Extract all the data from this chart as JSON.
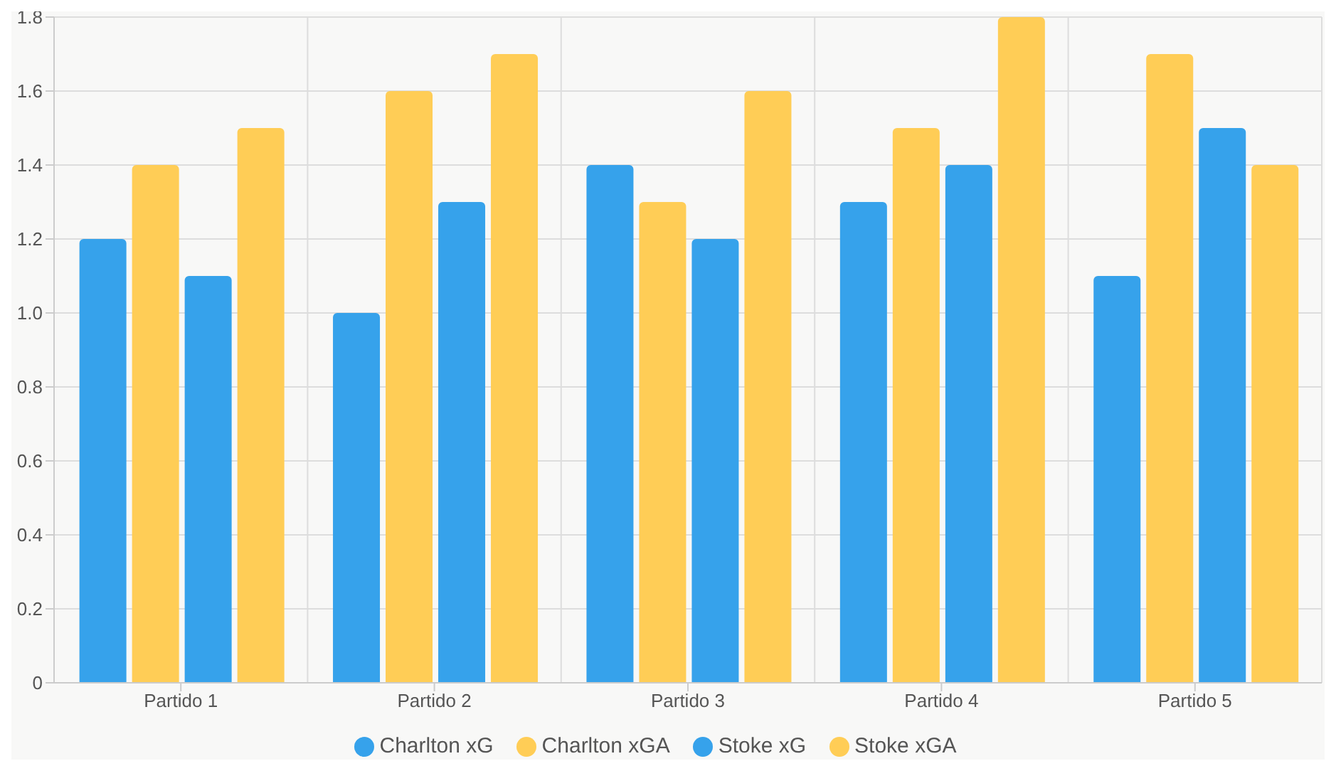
{
  "chart_data": {
    "type": "bar",
    "categories": [
      "Partido 1",
      "Partido 2",
      "Partido 3",
      "Partido 4",
      "Partido 5"
    ],
    "series": [
      {
        "name": "Charlton xG",
        "color": "#36a2eb",
        "values": [
          1.2,
          1.0,
          1.4,
          1.3,
          1.1
        ]
      },
      {
        "name": "Charlton xGA",
        "color": "#ffcd56",
        "values": [
          1.4,
          1.6,
          1.3,
          1.5,
          1.7
        ]
      },
      {
        "name": "Stoke xG",
        "color": "#36a2eb",
        "values": [
          1.1,
          1.3,
          1.2,
          1.4,
          1.5
        ]
      },
      {
        "name": "Stoke xGA",
        "color": "#ffcd56",
        "values": [
          1.5,
          1.7,
          1.6,
          1.8,
          1.4
        ]
      }
    ],
    "ylim": [
      0,
      1.8
    ],
    "yticks": [
      0,
      {
        "value": 0.2,
        "label": "0.2"
      },
      {
        "value": 0.4,
        "label": "0.4"
      },
      {
        "value": 0.6,
        "label": "0.6"
      },
      {
        "value": 0.8,
        "label": "0.8"
      },
      {
        "value": 1,
        "label": "1.0"
      },
      {
        "value": 1.2,
        "label": "1.2"
      },
      {
        "value": 1.4,
        "label": "1.4"
      },
      {
        "value": 1.6,
        "label": "1.6"
      },
      {
        "value": 1.8,
        "label": "1.8"
      }
    ],
    "grid": true,
    "legend": "bottom"
  }
}
